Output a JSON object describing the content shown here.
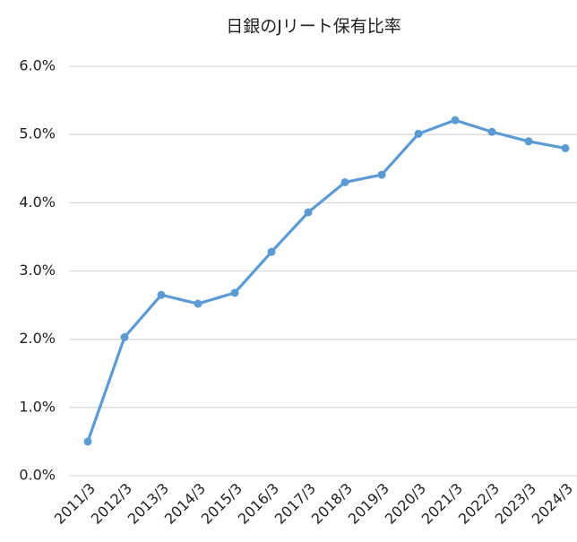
{
  "chart_data": {
    "type": "line",
    "title": "日銀のJリート保有比率",
    "categories": [
      "2011/3",
      "2012/3",
      "2013/3",
      "2014/3",
      "2015/3",
      "2016/3",
      "2017/3",
      "2018/3",
      "2019/3",
      "2020/3",
      "2021/3",
      "2022/3",
      "2023/3",
      "2024/3"
    ],
    "values": [
      0.5,
      2.03,
      2.65,
      2.52,
      2.68,
      3.28,
      3.86,
      4.3,
      4.41,
      5.01,
      5.21,
      5.04,
      4.9,
      4.8
    ],
    "color": "#5b9bd5",
    "ylim": [
      0,
      6
    ],
    "yticks": [
      {
        "value": 0,
        "label": "0.0%"
      },
      {
        "value": 1,
        "label": "1.0%"
      },
      {
        "value": 2,
        "label": "2.0%"
      },
      {
        "value": 3,
        "label": "3.0%"
      },
      {
        "value": 4,
        "label": "4.0%"
      },
      {
        "value": 5,
        "label": "5.0%"
      },
      {
        "value": 6,
        "label": "6.0%"
      }
    ],
    "grid": true
  }
}
